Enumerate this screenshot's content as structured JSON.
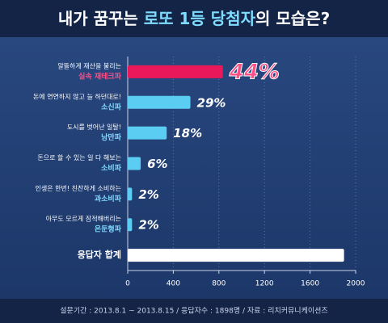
{
  "chart_data": {
    "type": "hbar",
    "title": [
      {
        "text": "내가 꿈꾸는 ",
        "color": "#ffffff"
      },
      {
        "text": "로또 1등 당첨자",
        "color": "#7fdcff"
      },
      {
        "text": "의 모습은?",
        "color": "#ffffff"
      }
    ],
    "categories": [
      {
        "line1": "알뜰하게 재산을 불리는",
        "line2": "실속 재테크파"
      },
      {
        "line1": "돈에 연연하지 않고 늘 하던대로!",
        "line2": "소신파"
      },
      {
        "line1": "도시를 벗어난 일탈!",
        "line2": "낭만파"
      },
      {
        "line1": "돈으로 할 수 있는 일 다 해보는",
        "line2": "소비파"
      },
      {
        "line1": "인생은 한번! 친찬하게 소비하는",
        "line2": "과소비파"
      },
      {
        "line1": "아무도 모르게 잠적해버리는",
        "line2": "은둔형파"
      },
      {
        "line1": "응답자 합계",
        "line2": null
      }
    ],
    "values": [
      835,
      550,
      342,
      114,
      38,
      38,
      1898
    ],
    "value_labels": [
      "44%",
      "29%",
      "18%",
      "6%",
      "2%",
      "2%",
      null
    ],
    "colors": [
      "#e8185a",
      "#5ccdf2",
      "#5ccdf2",
      "#5ccdf2",
      "#5ccdf2",
      "#5ccdf2",
      "#ffffff"
    ],
    "tag_colors": [
      "#ff4f86",
      "#7fdcff",
      "#7fdcff",
      "#7fdcff",
      "#7fdcff",
      "#7fdcff",
      null
    ],
    "xlim": [
      0,
      2000
    ],
    "xticks": [
      0,
      400,
      800,
      1200,
      1600,
      2000
    ],
    "grid": true,
    "source": "설문기간 : 2013.8.1 ~ 2013.8.15 / 응답자수 : 1898명 / 자료 : 리치커뮤니케이션즈"
  }
}
